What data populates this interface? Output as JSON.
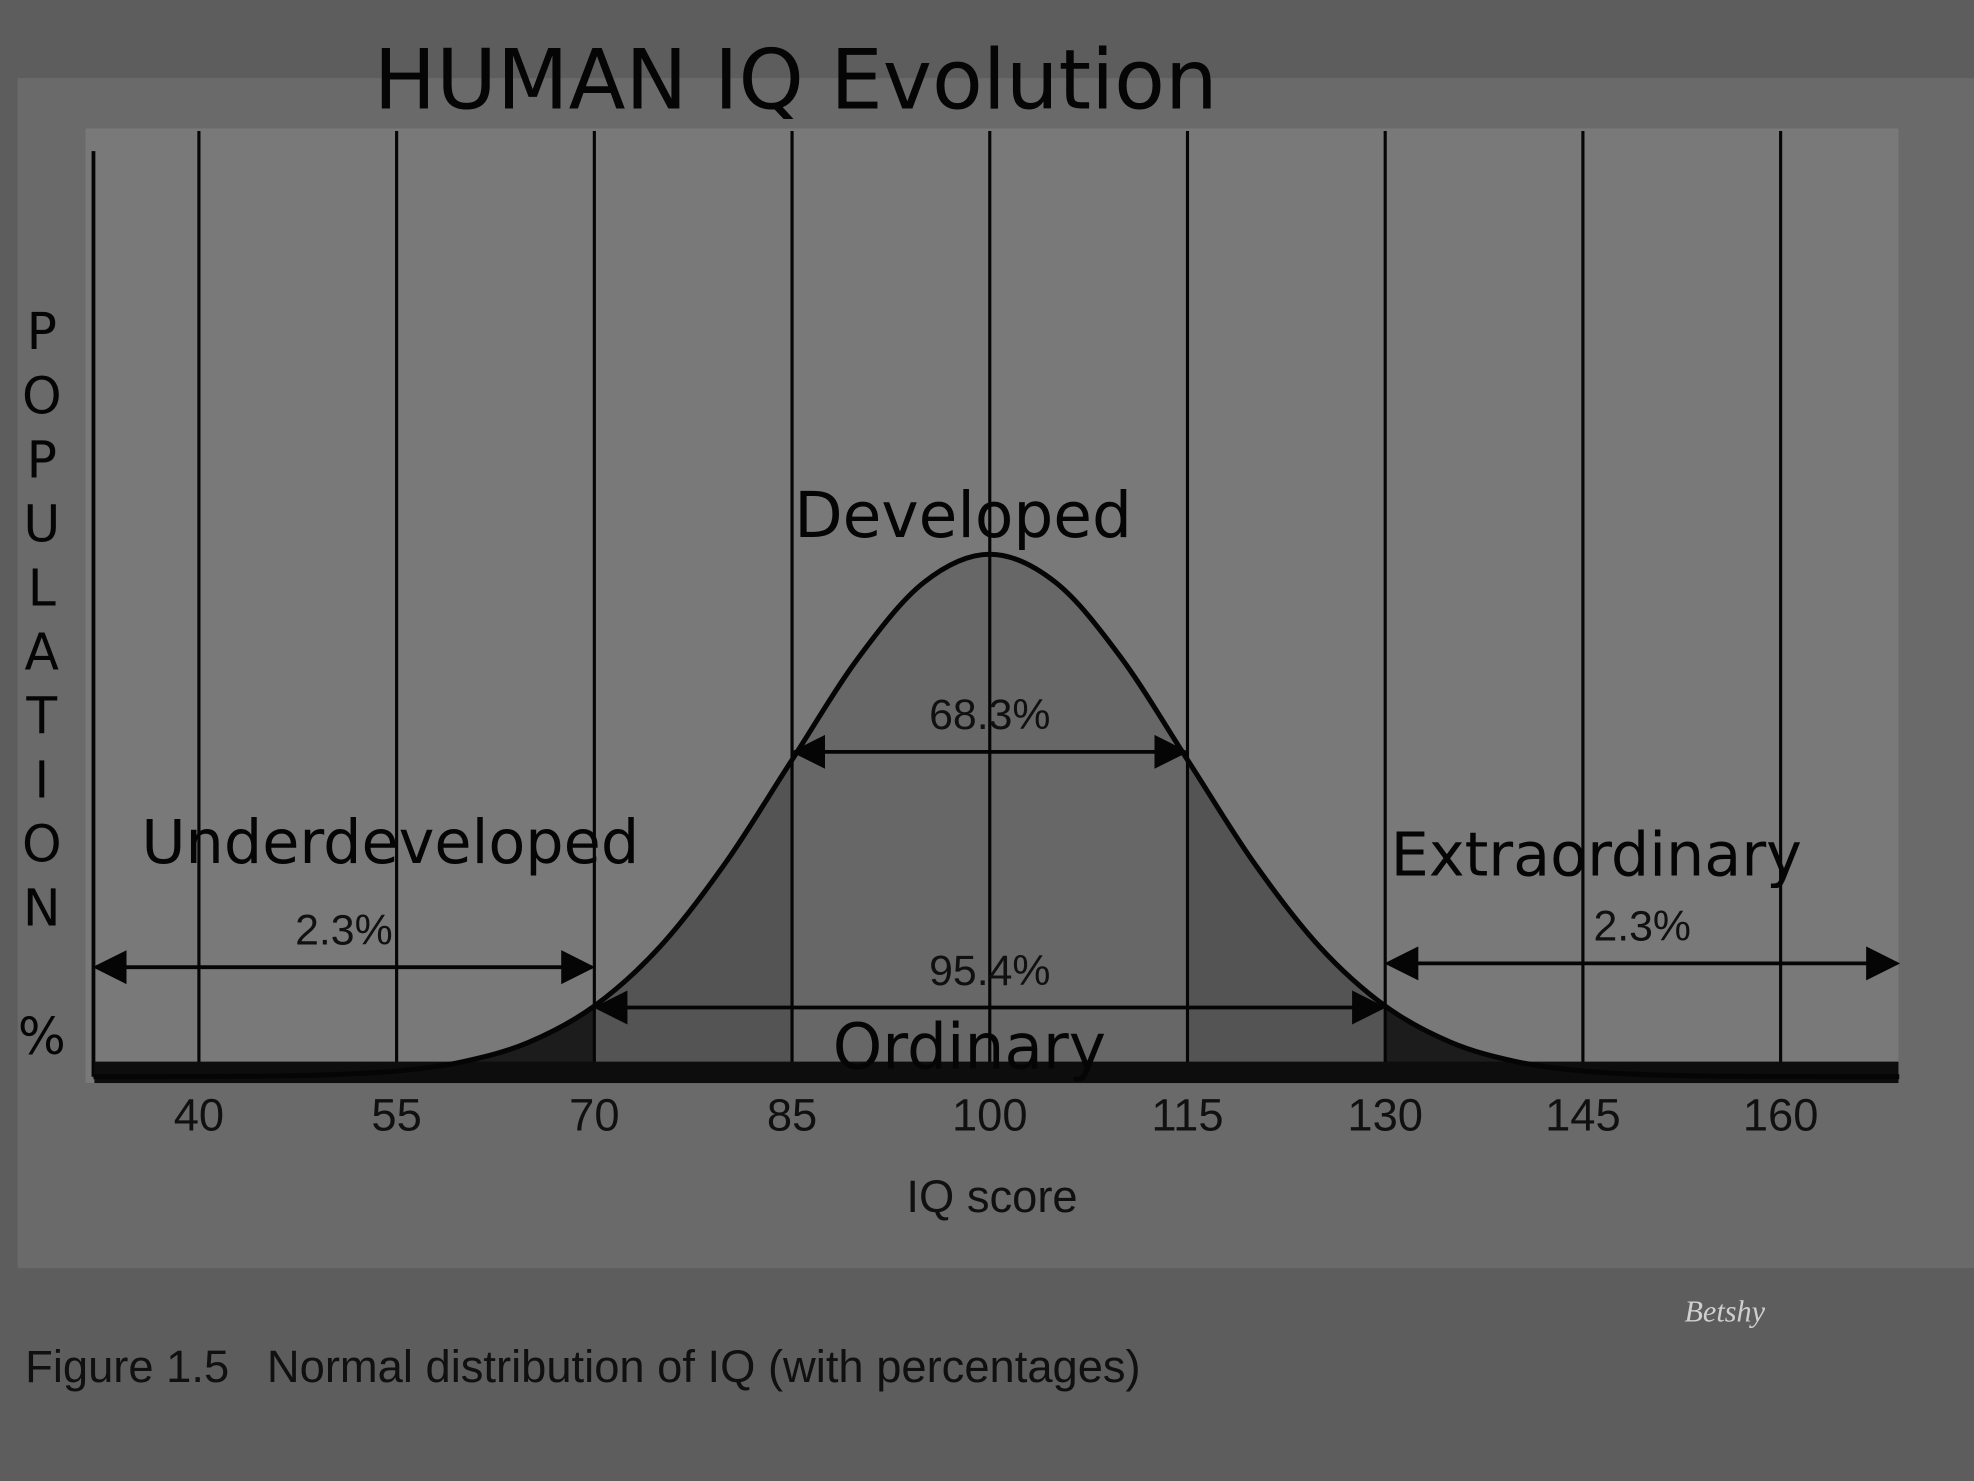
{
  "chart_data": {
    "type": "area",
    "title": "HUMAN IQ Evolution",
    "x_label": "IQ score",
    "y_label": "POPULATION %",
    "caption": "Figure 1.5   Normal distribution of IQ (with percentages)",
    "watermark": "Betshy",
    "annotations": [
      "Developed",
      "Underdeveloped",
      "Extraordinary",
      "Ordinary"
    ],
    "x": [
      32,
      35,
      40,
      45,
      50,
      55,
      60,
      65,
      70,
      75,
      80,
      85,
      90,
      95,
      100,
      105,
      110,
      115,
      120,
      125,
      130,
      135,
      140,
      145,
      150,
      155,
      160,
      165,
      169
    ],
    "values": [
      0.0001,
      0.0002,
      0.0009,
      0.0032,
      0.0103,
      0.0295,
      0.076,
      0.1748,
      0.36,
      0.6633,
      1.0934,
      1.6131,
      2.1296,
      2.516,
      2.6596,
      2.516,
      2.1296,
      1.6131,
      1.0934,
      0.6633,
      0.36,
      0.1748,
      0.076,
      0.0295,
      0.0103,
      0.0032,
      0.0009,
      0.0002,
      0.0001
    ],
    "color": "#050505",
    "bands": [
      {
        "from": 32,
        "to": 70,
        "color": "#1c1c1c"
      },
      {
        "from": 70,
        "to": 85,
        "color": "#545454"
      },
      {
        "from": 85,
        "to": 115,
        "color": "#676767"
      },
      {
        "from": 115,
        "to": 130,
        "color": "#545454"
      },
      {
        "from": 130,
        "to": 169,
        "color": "#1c1c1c"
      }
    ],
    "ranges": [
      {
        "label": "68.3%",
        "x": [
          85,
          115
        ]
      },
      {
        "label": "95.4%",
        "x": [
          70,
          130
        ]
      },
      {
        "label": "2.3%",
        "x": [
          32,
          70
        ]
      },
      {
        "label": "2.3%",
        "x": [
          130,
          169
        ]
      }
    ],
    "xlim": [
      32,
      169
    ],
    "xticks": [
      40,
      55,
      70,
      85,
      100,
      115,
      130,
      145,
      160
    ],
    "ylim": [
      0,
      3
    ],
    "grid": true
  }
}
